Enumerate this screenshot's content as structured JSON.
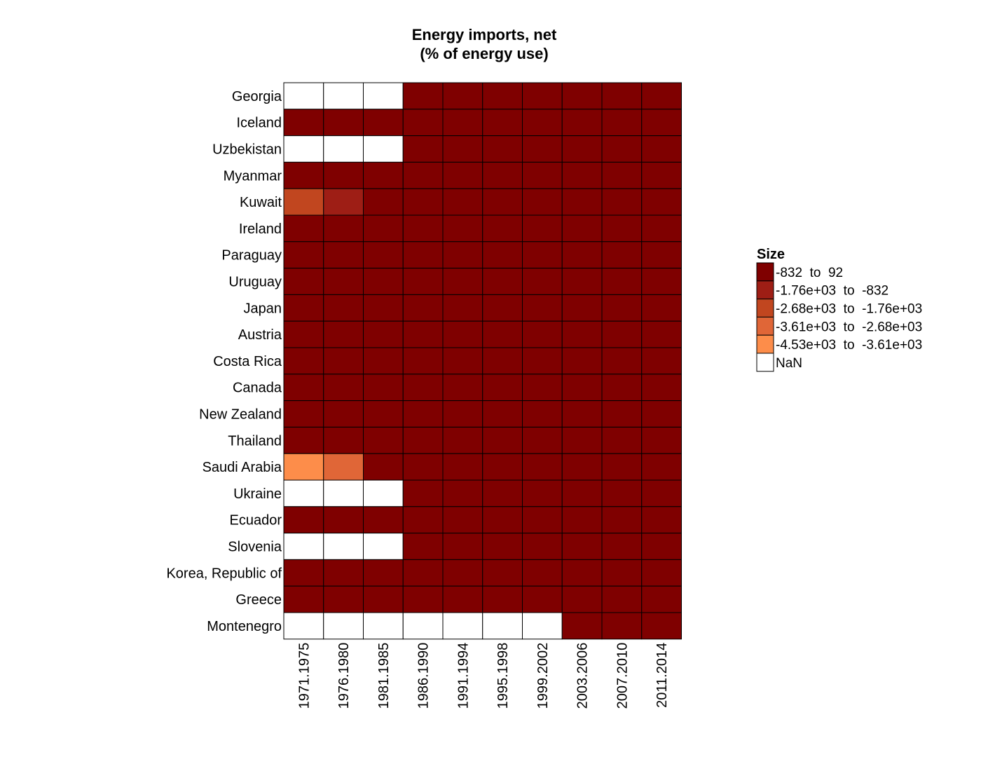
{
  "chart_data": {
    "type": "heatmap",
    "title": [
      "Energy imports, net",
      "(% of energy use)"
    ],
    "rows": [
      "Georgia",
      "Iceland",
      "Uzbekistan",
      "Myanmar",
      "Kuwait",
      "Ireland",
      "Paraguay",
      "Uruguay",
      "Japan",
      "Austria",
      "Costa Rica",
      "Canada",
      "New Zealand",
      "Thailand",
      "Saudi Arabia",
      "Ukraine",
      "Ecuador",
      "Slovenia",
      "Korea, Republic of",
      "Greece",
      "Montenegro"
    ],
    "columns": [
      "1971.1975",
      "1976.1980",
      "1981.1985",
      "1986.1990",
      "1991.1994",
      "1995.1998",
      "1999.2002",
      "2003.2006",
      "2007.2010",
      "2011.2014"
    ],
    "bin_matrix": [
      [
        "NaN",
        "NaN",
        "NaN",
        0,
        0,
        0,
        0,
        0,
        0,
        0
      ],
      [
        0,
        0,
        0,
        0,
        0,
        0,
        0,
        0,
        0,
        0
      ],
      [
        "NaN",
        "NaN",
        "NaN",
        0,
        0,
        0,
        0,
        0,
        0,
        0
      ],
      [
        0,
        0,
        0,
        0,
        0,
        0,
        0,
        0,
        0,
        0
      ],
      [
        2,
        1,
        0,
        0,
        0,
        0,
        0,
        0,
        0,
        0
      ],
      [
        0,
        0,
        0,
        0,
        0,
        0,
        0,
        0,
        0,
        0
      ],
      [
        0,
        0,
        0,
        0,
        0,
        0,
        0,
        0,
        0,
        0
      ],
      [
        0,
        0,
        0,
        0,
        0,
        0,
        0,
        0,
        0,
        0
      ],
      [
        0,
        0,
        0,
        0,
        0,
        0,
        0,
        0,
        0,
        0
      ],
      [
        0,
        0,
        0,
        0,
        0,
        0,
        0,
        0,
        0,
        0
      ],
      [
        0,
        0,
        0,
        0,
        0,
        0,
        0,
        0,
        0,
        0
      ],
      [
        0,
        0,
        0,
        0,
        0,
        0,
        0,
        0,
        0,
        0
      ],
      [
        0,
        0,
        0,
        0,
        0,
        0,
        0,
        0,
        0,
        0
      ],
      [
        0,
        0,
        0,
        0,
        0,
        0,
        0,
        0,
        0,
        0
      ],
      [
        4,
        3,
        0,
        0,
        0,
        0,
        0,
        0,
        0,
        0
      ],
      [
        "NaN",
        "NaN",
        "NaN",
        0,
        0,
        0,
        0,
        0,
        0,
        0
      ],
      [
        0,
        0,
        0,
        0,
        0,
        0,
        0,
        0,
        0,
        0
      ],
      [
        "NaN",
        "NaN",
        "NaN",
        0,
        0,
        0,
        0,
        0,
        0,
        0
      ],
      [
        0,
        0,
        0,
        0,
        0,
        0,
        0,
        0,
        0,
        0
      ],
      [
        0,
        0,
        0,
        0,
        0,
        0,
        0,
        0,
        0,
        0
      ],
      [
        "NaN",
        "NaN",
        "NaN",
        "NaN",
        "NaN",
        "NaN",
        "NaN",
        0,
        0,
        0
      ]
    ],
    "legend": {
      "title": "Size",
      "entries": [
        {
          "label": "-832  to  92",
          "color": "#7f0000"
        },
        {
          "label": "-1.76e+03  to  -832",
          "color": "#9e1e15"
        },
        {
          "label": "-2.68e+03  to  -1.76e+03",
          "color": "#c1461f"
        },
        {
          "label": "-3.61e+03  to  -2.68e+03",
          "color": "#e06637"
        },
        {
          "label": "-4.53e+03  to  -3.61e+03",
          "color": "#fd8d4a"
        },
        {
          "label": "NaN",
          "color": "#ffffff"
        }
      ],
      "position": "right"
    }
  }
}
